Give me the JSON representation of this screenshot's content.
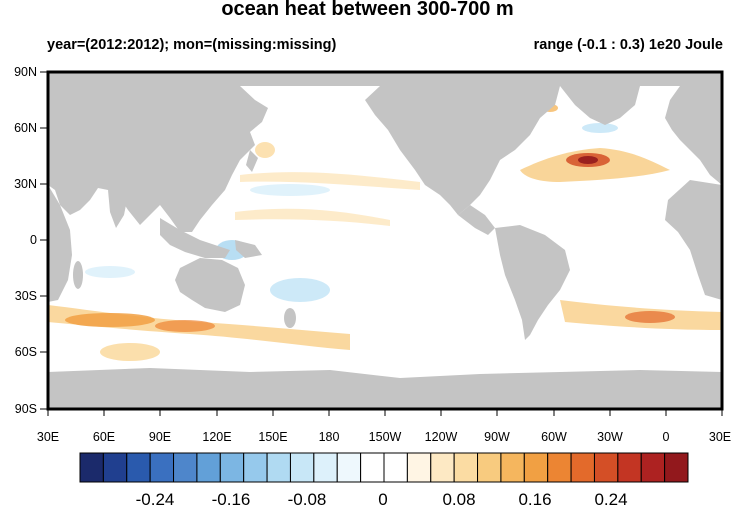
{
  "title": "ocean heat between 300-700 m",
  "subtitle_left": "year=(2012:2012); mon=(missing:missing)",
  "subtitle_right": "range (-0.1 : 0.3) 1e20 Joule",
  "y_ticks": [
    "90N",
    "60N",
    "30N",
    "0",
    "30S",
    "60S",
    "90S"
  ],
  "x_ticks": [
    "30E",
    "60E",
    "90E",
    "120E",
    "150E",
    "180",
    "150W",
    "120W",
    "90W",
    "60W",
    "30W",
    "0",
    "30E"
  ],
  "colorbar": {
    "labels": [
      "-0.24",
      "-0.16",
      "-0.08",
      "0",
      "0.08",
      "0.16",
      "0.24"
    ],
    "colors": [
      "#1b2a6b",
      "#203f8f",
      "#2a5aad",
      "#3a70c0",
      "#4e86cb",
      "#62a0d8",
      "#7cb6e3",
      "#96c9ec",
      "#b0daf2",
      "#c8e7f7",
      "#ddf1fb",
      "#eef8fd",
      "#ffffff",
      "#ffffff",
      "#fff5e4",
      "#fde9c4",
      "#fbdca3",
      "#f8cb7f",
      "#f5b65e",
      "#f1a043",
      "#ec8533",
      "#e36a2b",
      "#d44f26",
      "#c33523",
      "#ad2221",
      "#92181c"
    ]
  },
  "colors": {
    "land": "#c4c4c4",
    "ocean": "#ffffff",
    "frame": "#000000"
  },
  "features": {
    "land_masses": [
      "Africa",
      "Eurasia",
      "Australia",
      "North America",
      "South America",
      "Antarctica",
      "Greenland"
    ],
    "anomalies": [
      "Gulf Stream max",
      "Southern Ocean warm band",
      "Indian Ocean cool patch",
      "South Pacific cool patch"
    ]
  }
}
